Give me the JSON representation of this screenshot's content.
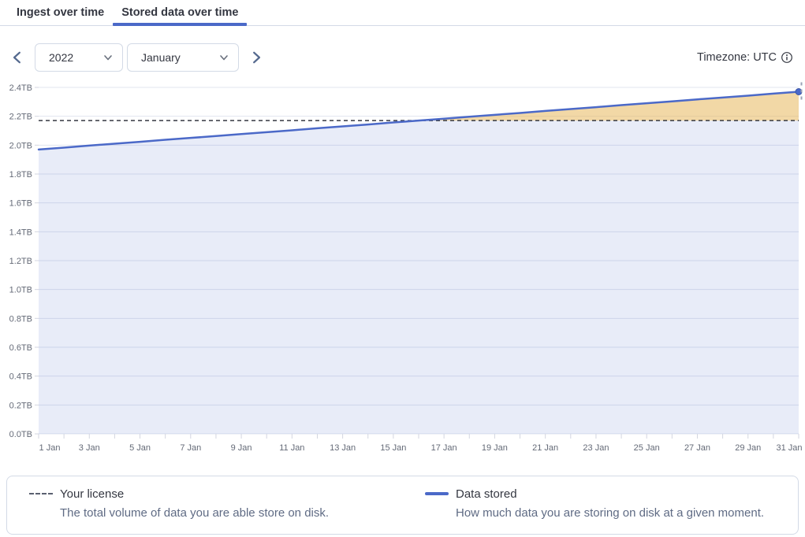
{
  "tabs": [
    {
      "label": "Ingest over time",
      "active": false
    },
    {
      "label": "Stored data over time",
      "active": true
    }
  ],
  "controls": {
    "year": "2022",
    "month": "January",
    "prev_icon": "chevron-left",
    "next_icon": "chevron-right"
  },
  "header": {
    "timezone_label": "Timezone: UTC",
    "info_icon": "info-circle"
  },
  "chart_data": {
    "type": "area",
    "title": "Stored data over time",
    "unit": "TB",
    "categories": [
      "1 Jan",
      "2 Jan",
      "3 Jan",
      "4 Jan",
      "5 Jan",
      "6 Jan",
      "7 Jan",
      "8 Jan",
      "9 Jan",
      "10 Jan",
      "11 Jan",
      "12 Jan",
      "13 Jan",
      "14 Jan",
      "15 Jan",
      "16 Jan",
      "17 Jan",
      "18 Jan",
      "19 Jan",
      "20 Jan",
      "21 Jan",
      "22 Jan",
      "23 Jan",
      "24 Jan",
      "25 Jan",
      "26 Jan",
      "27 Jan",
      "28 Jan",
      "29 Jan",
      "30 Jan",
      "31 Jan"
    ],
    "xtick_every": 2,
    "ylim": [
      0,
      2.4
    ],
    "ytick_step": 0.2,
    "grid": "horizontal",
    "legend_position": "bottom",
    "series": [
      {
        "name": "Data stored",
        "values": [
          1.97,
          1.983,
          1.997,
          2.01,
          2.023,
          2.037,
          2.05,
          2.063,
          2.077,
          2.09,
          2.103,
          2.117,
          2.13,
          2.143,
          2.157,
          2.17,
          2.183,
          2.197,
          2.21,
          2.223,
          2.237,
          2.25,
          2.263,
          2.277,
          2.29,
          2.303,
          2.317,
          2.33,
          2.343,
          2.357,
          2.37
        ]
      }
    ],
    "threshold": {
      "name": "Your license",
      "value": 2.17
    }
  },
  "legend": {
    "items": [
      {
        "swatch": "dashed-line",
        "title": "Your license",
        "description": "The total volume of data you are able store on disk."
      },
      {
        "swatch": "solid-line",
        "title": "Data stored",
        "description": "How much data you are storing on disk at a given moment."
      }
    ]
  },
  "colors": {
    "accent": "#4B69C8",
    "tab_underline": "#4B69C8",
    "area_fill": "rgba(75,105,200,0.13)",
    "over_license_fill": "rgba(251,196,84,0.5)",
    "threshold_line": "#343741",
    "gridline": "#E1E4EF",
    "tick": "#D3D6E0",
    "axis_text": "#646A77",
    "border": "#D3DAE6",
    "legend_description_text": "#5F6B84",
    "nav_chevron": "#54698E",
    "marker_stroke": "#3B55A5",
    "edge_annotation": "#9AA2B5"
  }
}
